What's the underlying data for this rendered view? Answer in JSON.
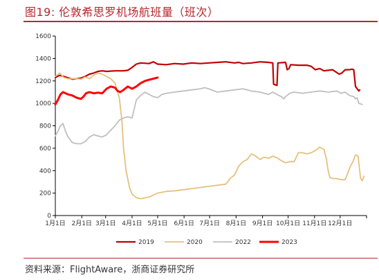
{
  "header": {
    "title": "图19:   伦敦希思罗机场航班量（班次）"
  },
  "footer": {
    "source": "资料来源：FlightAware，浙商证券研究所"
  },
  "chart_data": {
    "type": "line",
    "x_tick_labels": [
      "1月1日",
      "2月1日",
      "3月1日",
      "4月1日",
      "5月1日",
      "6月1日",
      "7月1日",
      "8月1日",
      "9月1日",
      "10月1日",
      "11月1日",
      "12月1日"
    ],
    "x_tick_days": [
      0,
      31,
      59,
      90,
      120,
      151,
      181,
      212,
      243,
      273,
      304,
      334
    ],
    "xlim": [
      0,
      365
    ],
    "ylim": [
      0,
      1600
    ],
    "y_ticks": [
      0,
      200,
      400,
      600,
      800,
      1000,
      1200,
      1400,
      1600
    ],
    "legend_position": "bottom",
    "series": [
      {
        "name": "2019",
        "color": "#c00000",
        "width": 2.2,
        "points": [
          [
            0,
            1230
          ],
          [
            5,
            1250
          ],
          [
            10,
            1240
          ],
          [
            20,
            1215
          ],
          [
            30,
            1225
          ],
          [
            35,
            1240
          ],
          [
            40,
            1260
          ],
          [
            45,
            1270
          ],
          [
            50,
            1285
          ],
          [
            55,
            1290
          ],
          [
            60,
            1285
          ],
          [
            70,
            1290
          ],
          [
            80,
            1290
          ],
          [
            85,
            1295
          ],
          [
            90,
            1320
          ],
          [
            95,
            1350
          ],
          [
            100,
            1360
          ],
          [
            110,
            1355
          ],
          [
            115,
            1370
          ],
          [
            120,
            1350
          ],
          [
            130,
            1345
          ],
          [
            140,
            1355
          ],
          [
            150,
            1350
          ],
          [
            160,
            1360
          ],
          [
            170,
            1355
          ],
          [
            180,
            1360
          ],
          [
            190,
            1365
          ],
          [
            200,
            1370
          ],
          [
            210,
            1360
          ],
          [
            215,
            1365
          ],
          [
            220,
            1355
          ],
          [
            230,
            1360
          ],
          [
            240,
            1370
          ],
          [
            250,
            1365
          ],
          [
            255,
            1360
          ],
          [
            256,
            1170
          ],
          [
            260,
            1160
          ],
          [
            261,
            1360
          ],
          [
            270,
            1365
          ],
          [
            272,
            1300
          ],
          [
            274,
            1310
          ],
          [
            276,
            1345
          ],
          [
            285,
            1340
          ],
          [
            295,
            1340
          ],
          [
            300,
            1330
          ],
          [
            305,
            1300
          ],
          [
            310,
            1310
          ],
          [
            315,
            1290
          ],
          [
            325,
            1300
          ],
          [
            330,
            1275
          ],
          [
            333,
            1260
          ],
          [
            336,
            1270
          ],
          [
            340,
            1300
          ],
          [
            345,
            1300
          ],
          [
            348,
            1305
          ],
          [
            350,
            1300
          ],
          [
            352,
            1150
          ],
          [
            354,
            1130
          ],
          [
            356,
            1110
          ],
          [
            357,
            1120
          ]
        ]
      },
      {
        "name": "2020",
        "color": "#e5c07b",
        "width": 1.8,
        "points": [
          [
            0,
            1240
          ],
          [
            5,
            1270
          ],
          [
            10,
            1230
          ],
          [
            15,
            1220
          ],
          [
            25,
            1220
          ],
          [
            30,
            1215
          ],
          [
            35,
            1235
          ],
          [
            40,
            1220
          ],
          [
            45,
            1250
          ],
          [
            50,
            1270
          ],
          [
            55,
            1260
          ],
          [
            60,
            1240
          ],
          [
            65,
            1220
          ],
          [
            70,
            1180
          ],
          [
            75,
            1050
          ],
          [
            78,
            850
          ],
          [
            80,
            600
          ],
          [
            83,
            400
          ],
          [
            87,
            250
          ],
          [
            90,
            190
          ],
          [
            95,
            160
          ],
          [
            100,
            150
          ],
          [
            110,
            165
          ],
          [
            120,
            200
          ],
          [
            130,
            215
          ],
          [
            140,
            220
          ],
          [
            150,
            230
          ],
          [
            160,
            240
          ],
          [
            170,
            250
          ],
          [
            180,
            260
          ],
          [
            190,
            270
          ],
          [
            200,
            280
          ],
          [
            205,
            330
          ],
          [
            210,
            360
          ],
          [
            215,
            440
          ],
          [
            220,
            480
          ],
          [
            225,
            500
          ],
          [
            230,
            550
          ],
          [
            235,
            530
          ],
          [
            240,
            500
          ],
          [
            245,
            520
          ],
          [
            250,
            510
          ],
          [
            255,
            530
          ],
          [
            260,
            515
          ],
          [
            265,
            490
          ],
          [
            270,
            470
          ],
          [
            275,
            480
          ],
          [
            280,
            480
          ],
          [
            285,
            560
          ],
          [
            290,
            560
          ],
          [
            295,
            550
          ],
          [
            300,
            560
          ],
          [
            305,
            580
          ],
          [
            310,
            610
          ],
          [
            315,
            590
          ],
          [
            318,
            500
          ],
          [
            320,
            400
          ],
          [
            322,
            340
          ],
          [
            325,
            330
          ],
          [
            330,
            330
          ],
          [
            335,
            320
          ],
          [
            340,
            320
          ],
          [
            343,
            380
          ],
          [
            346,
            440
          ],
          [
            349,
            480
          ],
          [
            352,
            540
          ],
          [
            355,
            530
          ],
          [
            358,
            330
          ],
          [
            360,
            310
          ],
          [
            362,
            350
          ]
        ]
      },
      {
        "name": "2022",
        "color": "#bfbfbf",
        "width": 1.8,
        "points": [
          [
            0,
            710
          ],
          [
            3,
            750
          ],
          [
            6,
            800
          ],
          [
            9,
            820
          ],
          [
            12,
            750
          ],
          [
            15,
            700
          ],
          [
            20,
            650
          ],
          [
            25,
            640
          ],
          [
            30,
            640
          ],
          [
            35,
            660
          ],
          [
            40,
            700
          ],
          [
            45,
            720
          ],
          [
            50,
            710
          ],
          [
            55,
            700
          ],
          [
            60,
            720
          ],
          [
            65,
            760
          ],
          [
            70,
            800
          ],
          [
            75,
            850
          ],
          [
            80,
            870
          ],
          [
            85,
            880
          ],
          [
            90,
            870
          ],
          [
            95,
            1030
          ],
          [
            100,
            1070
          ],
          [
            105,
            1100
          ],
          [
            110,
            1080
          ],
          [
            115,
            1060
          ],
          [
            120,
            1050
          ],
          [
            125,
            1080
          ],
          [
            130,
            1090
          ],
          [
            140,
            1100
          ],
          [
            150,
            1110
          ],
          [
            160,
            1120
          ],
          [
            170,
            1130
          ],
          [
            175,
            1140
          ],
          [
            180,
            1130
          ],
          [
            190,
            1100
          ],
          [
            200,
            1110
          ],
          [
            210,
            1120
          ],
          [
            220,
            1130
          ],
          [
            230,
            1110
          ],
          [
            240,
            1100
          ],
          [
            250,
            1080
          ],
          [
            255,
            1100
          ],
          [
            260,
            1080
          ],
          [
            265,
            1060
          ],
          [
            268,
            1040
          ],
          [
            270,
            1060
          ],
          [
            275,
            1090
          ],
          [
            280,
            1100
          ],
          [
            290,
            1090
          ],
          [
            300,
            1100
          ],
          [
            310,
            1110
          ],
          [
            320,
            1100
          ],
          [
            330,
            1110
          ],
          [
            335,
            1090
          ],
          [
            340,
            1100
          ],
          [
            345,
            1070
          ],
          [
            350,
            1060
          ],
          [
            352,
            1040
          ],
          [
            354,
            1050
          ],
          [
            356,
            1000
          ],
          [
            360,
            990
          ]
        ]
      },
      {
        "name": "2023",
        "color": "#ff0000",
        "width": 3,
        "points": [
          [
            0,
            990
          ],
          [
            3,
            1030
          ],
          [
            6,
            1080
          ],
          [
            9,
            1100
          ],
          [
            12,
            1090
          ],
          [
            15,
            1080
          ],
          [
            20,
            1070
          ],
          [
            25,
            1050
          ],
          [
            30,
            1040
          ],
          [
            33,
            1060
          ],
          [
            36,
            1090
          ],
          [
            40,
            1100
          ],
          [
            45,
            1090
          ],
          [
            50,
            1095
          ],
          [
            55,
            1090
          ],
          [
            60,
            1130
          ],
          [
            65,
            1150
          ],
          [
            70,
            1140
          ],
          [
            73,
            1110
          ],
          [
            76,
            1100
          ],
          [
            80,
            1120
          ],
          [
            85,
            1150
          ],
          [
            90,
            1130
          ],
          [
            95,
            1150
          ],
          [
            100,
            1180
          ],
          [
            105,
            1200
          ],
          [
            110,
            1210
          ],
          [
            115,
            1220
          ],
          [
            120,
            1230
          ]
        ]
      }
    ]
  }
}
